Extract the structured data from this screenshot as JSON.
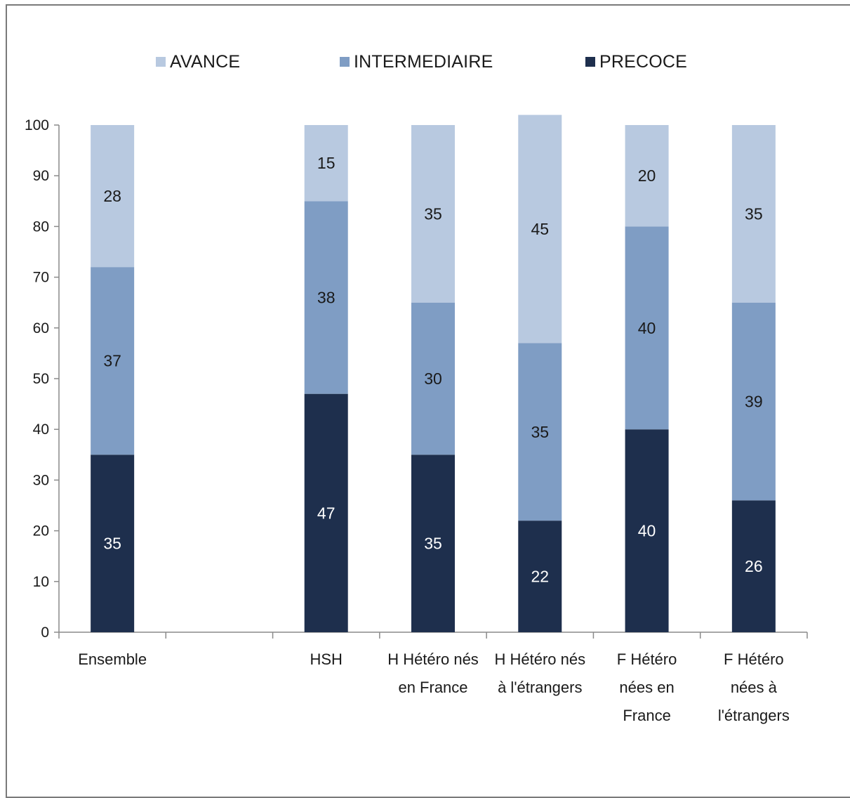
{
  "chart_data": {
    "type": "bar",
    "stacked": true,
    "categories": [
      [
        "Ensemble"
      ],
      [
        ""
      ],
      [
        "HSH"
      ],
      [
        "H Hétéro nés",
        "en France"
      ],
      [
        "H Hétéro nés",
        "à l'étrangers"
      ],
      [
        "F Hétéro",
        "nées en",
        "France"
      ],
      [
        "F Hétéro",
        "nées à",
        "l'étrangers"
      ]
    ],
    "series": [
      {
        "name": "PRECOCE",
        "color": "#1e2f4d",
        "label_color": "#ffffff",
        "values": [
          35,
          null,
          47,
          35,
          22,
          40,
          26
        ]
      },
      {
        "name": "INTERMEDIAIRE",
        "color": "#7f9dc4",
        "label_color": "#1a1a1a",
        "values": [
          37,
          null,
          38,
          30,
          35,
          40,
          39
        ]
      },
      {
        "name": "AVANCE",
        "color": "#b8c9e0",
        "label_color": "#1a1a1a",
        "values": [
          28,
          null,
          15,
          35,
          45,
          20,
          35
        ]
      }
    ],
    "legend_order": [
      "AVANCE",
      "INTERMEDIAIRE",
      "PRECOCE"
    ],
    "ylim": [
      0,
      100
    ],
    "yticks": [
      0,
      10,
      20,
      30,
      40,
      50,
      60,
      70,
      80,
      90,
      100
    ],
    "title": "",
    "xlabel": "",
    "ylabel": "",
    "grid": false,
    "legend_position": "top"
  }
}
